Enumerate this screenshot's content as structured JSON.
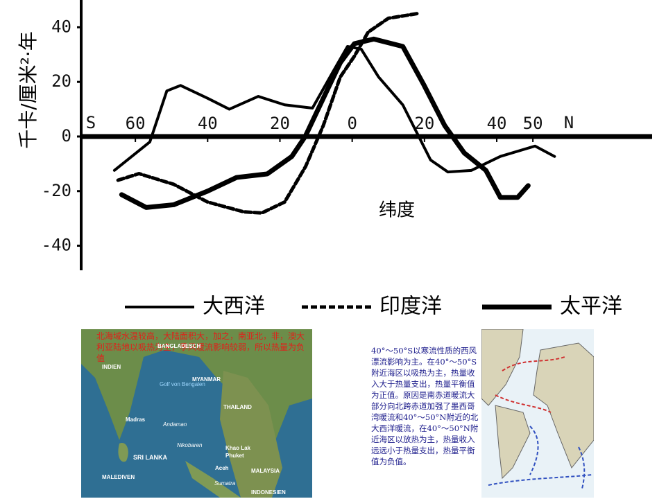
{
  "chart_data": {
    "type": "line",
    "ylabel": "千卡/厘米²·年",
    "xlabel": "纬度",
    "x_start_label": "S",
    "x_end_label": "N",
    "xlim": [
      -75,
      83
    ],
    "ylim": [
      -49,
      50
    ],
    "yticks": [
      40,
      20,
      0,
      -20,
      -40
    ],
    "xticks": [
      {
        "value": -60,
        "label": "60"
      },
      {
        "value": -40,
        "label": "40"
      },
      {
        "value": -20,
        "label": "20"
      },
      0,
      {
        "value": 20,
        "label": "20"
      },
      40,
      50
    ],
    "series": [
      {
        "name": "大西洋",
        "color": "#000000",
        "style": "solid",
        "x": [
          -65.8,
          -56,
          -51.3,
          -47.5,
          -40,
          -34,
          -26,
          -18.7,
          -11,
          -5.2,
          -1.3,
          2.5,
          7.3,
          14,
          21.7,
          26.5,
          33,
          41,
          50.6,
          56
        ],
        "values": [
          -12.4,
          -2,
          16.7,
          18.7,
          14,
          10,
          14.7,
          11.6,
          10.4,
          24,
          33,
          32,
          21.8,
          11.6,
          -8.6,
          -13,
          -12.4,
          -7.3,
          -3.5,
          -7.3
        ]
      },
      {
        "name": "印度洋",
        "color": "#000000",
        "style": "dashed",
        "x": [
          -64.8,
          -59,
          -49.4,
          -40,
          -30,
          -25,
          -18.7,
          -12.9,
          -8,
          -3.3,
          0.6,
          4.4,
          10,
          17.9
        ],
        "values": [
          -16,
          -13.6,
          -17.5,
          -24,
          -27.6,
          -28,
          -24,
          -11,
          4,
          21.8,
          29.4,
          38.2,
          43.3,
          45
        ]
      },
      {
        "name": "太平洋",
        "color": "#000000",
        "style": "thick",
        "x": [
          -63.8,
          -57,
          -49.4,
          -40,
          -32,
          -23.5,
          -16.7,
          -13,
          -8,
          -3.3,
          0.6,
          6,
          14,
          19.8,
          25.6,
          31,
          37,
          41,
          45.8,
          48.7
        ],
        "values": [
          -21.3,
          -26,
          -25,
          -20,
          -15,
          -13.7,
          -7.3,
          0,
          14,
          27,
          34,
          35.7,
          33,
          19,
          4,
          -6,
          -12.4,
          -22.3,
          -22.3,
          -18
        ]
      }
    ]
  },
  "left_map": {
    "note": "北海域水温较高，大陆面积大，加之，南亚北，非，澳大利亚陆地以吸热为主，季风暖流影响较弱，所以热量为负值",
    "labels": [
      "BANGLADESCH",
      "INDIEN",
      "MYANMAR",
      "Golf von Bengalen",
      "THAILAND",
      "Madras",
      "Andaman",
      "Nikobaren",
      "Khao Lak",
      "Phuket",
      "SRI LANKA",
      "Aceh",
      "MALAYSIA",
      "Sumatra",
      "MALEDIVEN",
      "INDONESIEN"
    ]
  },
  "explanation": "40°～50°S以寒流性质的西风漂流影响为主。在40°～50°S附近海区以吸热为主，热量收入大于热量支出，热量平衡值为正值。原因是南赤道暖流大部分向北跨赤道加强了墨西哥湾暖流和40°～50°N附近的北大西洋暖流，在40°～50°N附近海区以放热为主，热量收入远远小于热量支出，热量平衡值为负值。"
}
